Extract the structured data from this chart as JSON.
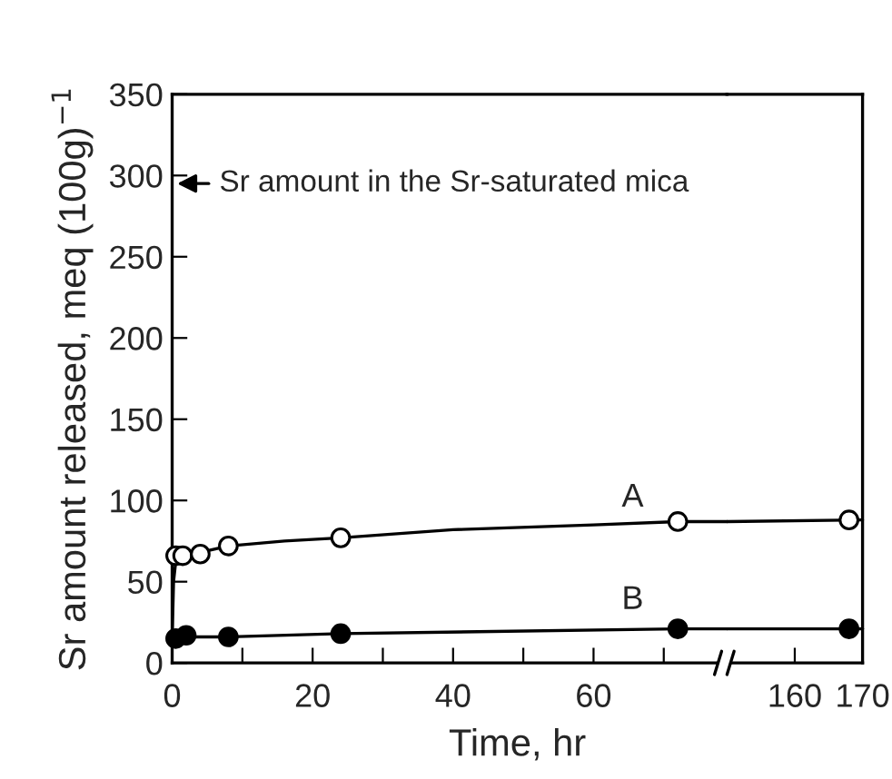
{
  "chart_data": [
    {
      "type": "scatter",
      "xlabel": "Time, hr",
      "ylabel": "Sr amount released, meq (100g)$^{−1}$",
      "xlim": [
        0,
        79
      ],
      "ylim": [
        0,
        350
      ],
      "xticks": [
        0,
        {
          "value": 10,
          "label": null
        },
        20,
        {
          "value": 30,
          "label": null
        },
        40,
        {
          "value": 50,
          "label": null
        },
        60,
        {
          "value": 70,
          "label": null
        }
      ],
      "yticks": [
        0,
        50,
        100,
        150,
        200,
        250,
        300,
        350
      ],
      "series": [
        {
          "type": "line",
          "color": "#000000",
          "marker": "none",
          "x": [
            0,
            0.2,
            0.5,
            1,
            2,
            4,
            8,
            16,
            24,
            40,
            60,
            72,
            79
          ],
          "values": [
            15,
            50,
            62,
            66,
            67,
            68,
            72,
            75,
            77,
            82,
            85,
            87,
            87
          ]
        },
        {
          "color": "#ffffff",
          "marker": "circle",
          "x": [
            0.5,
            1.5,
            4,
            8,
            24,
            72
          ],
          "values": [
            66,
            66,
            67,
            72,
            77,
            87
          ]
        },
        {
          "type": "line",
          "color": "#000000",
          "marker": "none",
          "x": [
            0,
            0.5,
            1,
            2,
            8,
            24,
            72,
            79
          ],
          "values": [
            14,
            15,
            16,
            16,
            16,
            18,
            21,
            21
          ]
        },
        {
          "color": "#000000",
          "marker": "circle",
          "x": [
            0.5,
            2,
            8,
            24,
            72
          ],
          "values": [
            15,
            17,
            16,
            18,
            21
          ]
        }
      ],
      "annotations": [
        "A",
        "B",
        "Sr amount in the Sr-saturated mica"
      ]
    },
    {
      "type": "scatter",
      "xlim": [
        150,
        170
      ],
      "ylim": [
        0,
        350
      ],
      "xticks": [
        160,
        170
      ],
      "yticks": [
        0,
        50,
        100,
        150,
        200,
        250,
        300,
        350
      ],
      "tick_labels": "x",
      "series": [
        {
          "type": "line",
          "color": "#000000",
          "marker": "none",
          "x": [
            150,
            170
          ],
          "values": [
            87,
            88
          ]
        },
        {
          "color": "#ffffff",
          "marker": "circle",
          "x": [
            168
          ],
          "values": [
            88
          ]
        },
        {
          "type": "line",
          "color": "#000000",
          "marker": "none",
          "x": [
            150,
            170
          ],
          "values": [
            21,
            21
          ]
        },
        {
          "color": "#000000",
          "marker": "circle",
          "x": [
            168
          ],
          "values": [
            21
          ]
        }
      ]
    }
  ]
}
